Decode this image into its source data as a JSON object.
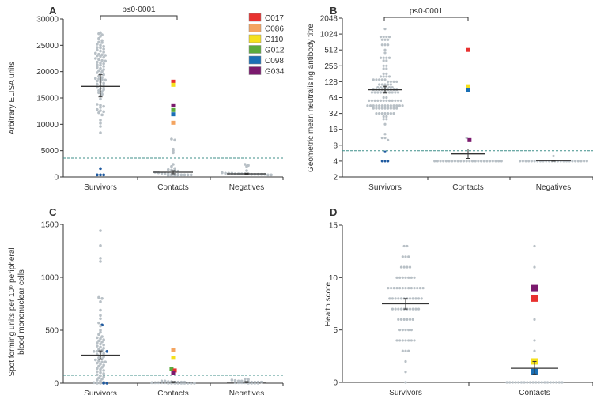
{
  "legend": [
    {
      "id": "C017",
      "color": "#e8312f"
    },
    {
      "id": "C086",
      "color": "#f4a460"
    },
    {
      "id": "C110",
      "color": "#f5e11c"
    },
    {
      "id": "G012",
      "color": "#5aab3c"
    },
    {
      "id": "C098",
      "color": "#1a6fb5"
    },
    {
      "id": "G034",
      "color": "#7b1a6e"
    }
  ],
  "colors": {
    "points": "#b8c0c6",
    "below_threshold": "#1f5aa0",
    "mean": "#333333",
    "threshold": "#3f8f8a"
  },
  "chart_data": [
    {
      "panel": "A",
      "type": "scatter",
      "ylabel": "Arbitrary ELISA units",
      "ylim": [
        0,
        30000
      ],
      "scale": "linear",
      "yticks": [
        "0",
        "5000",
        "10000",
        "15000",
        "20000",
        "25000",
        "30000"
      ],
      "categories": [
        "Survivors",
        "Contacts",
        "Negatives"
      ],
      "threshold": 3600,
      "pvalue": "p≤0·0001",
      "pvalue_between": [
        "Survivors",
        "Contacts"
      ],
      "legend": "top-right",
      "groups": [
        {
          "category": "Survivors",
          "mean": 17200,
          "error": [
            15200,
            19400
          ],
          "values": [
            27400,
            27200,
            27000,
            26700,
            26300,
            25900,
            25600,
            25500,
            25200,
            25000,
            24800,
            24600,
            24500,
            24300,
            24100,
            23900,
            23700,
            23500,
            23300,
            23200,
            23100,
            23000,
            22900,
            22700,
            22500,
            22300,
            22100,
            22000,
            21800,
            21600,
            21500,
            21300,
            21200,
            21000,
            20800,
            20600,
            20400,
            20200,
            20000,
            19800,
            19600,
            19400,
            19100,
            18900,
            18700,
            18600,
            18500,
            18400,
            18200,
            18000,
            17800,
            17600,
            17400,
            17200,
            17000,
            16800,
            16600,
            16400,
            16200,
            16000,
            15700,
            15400,
            14800,
            13800,
            13600,
            13400,
            13200,
            12800,
            12600,
            12400,
            12200,
            11800,
            10800,
            10200,
            9600,
            8400
          ],
          "special": [
            {
              "value": 1600,
              "color": "below_threshold"
            },
            {
              "value": 400,
              "color": "below_threshold"
            },
            {
              "value": 400,
              "color": "below_threshold"
            },
            {
              "value": 400,
              "color": "below_threshold"
            }
          ]
        },
        {
          "category": "Contacts",
          "mean": 900,
          "error": [
            600,
            1200
          ],
          "values": [
            7200,
            7000,
            5300,
            5000,
            4600,
            2400,
            2000,
            1600,
            1400,
            1300,
            1200,
            1100,
            900,
            800,
            700,
            600,
            600,
            500,
            500,
            500,
            400,
            400,
            400,
            400,
            300,
            300,
            300,
            300
          ],
          "special": [
            {
              "id": "C017",
              "value": 18100
            },
            {
              "id": "C110",
              "value": 17500
            },
            {
              "id": "G034",
              "value": 13600
            },
            {
              "id": "G012",
              "value": 12700
            },
            {
              "id": "C098",
              "value": 11900
            },
            {
              "id": "C086",
              "value": 10300
            }
          ]
        },
        {
          "category": "Negatives",
          "mean": 600,
          "error": [
            500,
            700
          ],
          "values": [
            2400,
            2200,
            2000,
            1200,
            800,
            700,
            700,
            700,
            600,
            600,
            600,
            600,
            600,
            500,
            500,
            500,
            500,
            500,
            400,
            400
          ],
          "special": []
        }
      ]
    },
    {
      "panel": "B",
      "type": "scatter",
      "ylabel": "Geometric mean neutralising antibody titre",
      "ylim": [
        2,
        2048
      ],
      "scale": "log2",
      "yticks": [
        "2",
        "4",
        "8",
        "16",
        "32",
        "64",
        "128",
        "256",
        "512",
        "1024",
        "2048"
      ],
      "categories": [
        "Survivors",
        "Contacts",
        "Negatives"
      ],
      "threshold": 6.3,
      "pvalue": "p≤0·0001",
      "pvalue_between": [
        "Survivors",
        "Contacts"
      ],
      "groups": [
        {
          "category": "Survivors",
          "mean": 90,
          "error": [
            78,
            105
          ],
          "levels": [
            [
              1280,
              1
            ],
            [
              905,
              4
            ],
            [
              800,
              3
            ],
            [
              640,
              3
            ],
            [
              512,
              1
            ],
            [
              452,
              1
            ],
            [
              362,
              4
            ],
            [
              320,
              2
            ],
            [
              256,
              2
            ],
            [
              226,
              2
            ],
            [
              181,
              2
            ],
            [
              160,
              4
            ],
            [
              140,
              5
            ],
            [
              128,
              4
            ],
            [
              113,
              5
            ],
            [
              100,
              6
            ],
            [
              90,
              9
            ],
            [
              80,
              10
            ],
            [
              64,
              2
            ],
            [
              56,
              12
            ],
            [
              45,
              13
            ],
            [
              40,
              9
            ],
            [
              32,
              7
            ],
            [
              28,
              2
            ],
            [
              25,
              2
            ],
            [
              20,
              1
            ],
            [
              13,
              1
            ],
            [
              11,
              2
            ],
            [
              10,
              1
            ]
          ],
          "special": [
            {
              "value": 6,
              "color": "below_threshold"
            },
            {
              "value": 4,
              "color": "below_threshold"
            },
            {
              "value": 4,
              "color": "below_threshold"
            },
            {
              "value": 4,
              "color": "below_threshold"
            }
          ]
        },
        {
          "category": "Contacts",
          "mean": 5.5,
          "error": [
            4.5,
            6.8
          ],
          "levels": [
            [
              11,
              1
            ],
            [
              4,
              24
            ]
          ],
          "special": [
            {
              "id": "C017",
              "value": 512
            },
            {
              "id": "C110",
              "value": 105
            },
            {
              "id": "C098",
              "value": 90
            },
            {
              "id": "G034",
              "value": 10
            }
          ]
        },
        {
          "category": "Negatives",
          "mean": 4.1,
          "error": [
            4,
            4.2
          ],
          "levels": [
            [
              5,
              1
            ],
            [
              4,
              24
            ]
          ],
          "special": []
        }
      ]
    },
    {
      "panel": "C",
      "type": "scatter",
      "ylabel": [
        "Spot forming units per 10⁶ peripheral",
        "blood mononuclear cells"
      ],
      "ylim": [
        0,
        1500
      ],
      "scale": "linear",
      "yticks": [
        "0",
        "500",
        "1000",
        "1500"
      ],
      "categories": [
        "Survivors",
        "Contacts",
        "Negatives"
      ],
      "threshold": 75,
      "groups": [
        {
          "category": "Survivors",
          "mean": 265,
          "error": [
            225,
            305
          ],
          "values": [
            1440,
            1300,
            1180,
            1150,
            810,
            800,
            770,
            690,
            640,
            610,
            570,
            540,
            500,
            480,
            460,
            440,
            430,
            420,
            410,
            400,
            390,
            380,
            370,
            360,
            350,
            340,
            330,
            320,
            310,
            300,
            300,
            290,
            280,
            270,
            260,
            250,
            240,
            230,
            220,
            210,
            200,
            200,
            190,
            180,
            170,
            160,
            150,
            140,
            130,
            120,
            110,
            100,
            90,
            80,
            70,
            60,
            50,
            40,
            30,
            20,
            10,
            5,
            0,
            0
          ],
          "special": [
            {
              "value": 550,
              "color": "below_threshold"
            },
            {
              "value": 300,
              "color": "below_threshold"
            },
            {
              "value": 0,
              "color": "below_threshold"
            },
            {
              "value": 0,
              "color": "below_threshold"
            }
          ]
        },
        {
          "category": "Contacts",
          "mean": 10,
          "error": [
            5,
            15
          ],
          "values": [
            20,
            20,
            15,
            15,
            10,
            10,
            10,
            10,
            5,
            5,
            5,
            5,
            5,
            0,
            0,
            0,
            0,
            0,
            0,
            0,
            0,
            0
          ],
          "special": [
            {
              "id": "C086",
              "value": 310
            },
            {
              "id": "C110",
              "value": 240
            },
            {
              "id": "G012",
              "value": 135
            },
            {
              "id": "C017",
              "value": 120
            },
            {
              "id": "G034",
              "value": 95
            }
          ]
        },
        {
          "category": "Negatives",
          "mean": 10,
          "error": [
            5,
            15
          ],
          "values": [
            40,
            35,
            30,
            25,
            20,
            20,
            15,
            15,
            10,
            10,
            10,
            10,
            5,
            5,
            5,
            5,
            0,
            0,
            0,
            0
          ],
          "special": []
        }
      ]
    },
    {
      "panel": "D",
      "type": "scatter",
      "ylabel": "Health score",
      "ylim": [
        0,
        15
      ],
      "scale": "linear",
      "yticks": [
        "0",
        "5",
        "10",
        "15"
      ],
      "categories": [
        "Survivors",
        "Contacts"
      ],
      "threshold": null,
      "groups": [
        {
          "category": "Survivors",
          "mean": 7.5,
          "error": [
            7.0,
            8.0
          ],
          "levels": [
            [
              13,
              2
            ],
            [
              12,
              3
            ],
            [
              11,
              4
            ],
            [
              10,
              7
            ],
            [
              9,
              13
            ],
            [
              8,
              12
            ],
            [
              7,
              10
            ],
            [
              6,
              6
            ],
            [
              5,
              5
            ],
            [
              4,
              7
            ],
            [
              3,
              3
            ],
            [
              2,
              1
            ],
            [
              1,
              1
            ],
            [
              0,
              1
            ]
          ],
          "special": []
        },
        {
          "category": "Contacts",
          "mean": 1.35,
          "error": [
            0.8,
            2.0
          ],
          "levels": [
            [
              13,
              1
            ],
            [
              11,
              1
            ],
            [
              6,
              1
            ],
            [
              4,
              1
            ],
            [
              3,
              1
            ],
            [
              0,
              20
            ]
          ],
          "special": [
            {
              "id": "G034",
              "value": 9
            },
            {
              "id": "C017",
              "value": 8
            },
            {
              "id": "C110",
              "value": 2
            },
            {
              "id": "C098",
              "value": 1
            }
          ]
        }
      ]
    }
  ]
}
